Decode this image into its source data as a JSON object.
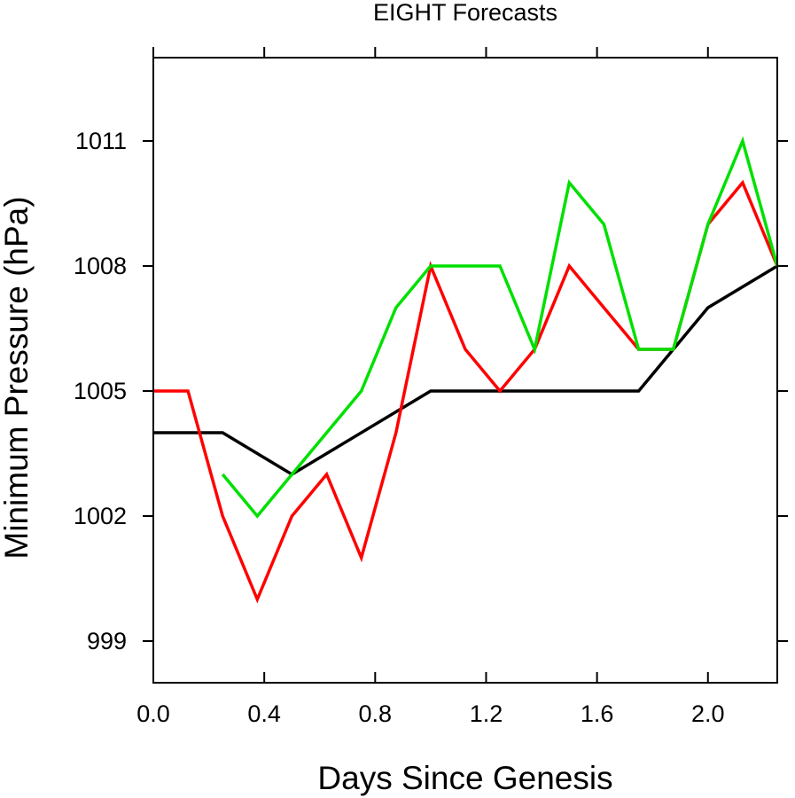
{
  "chart_data": {
    "type": "line",
    "title": "EIGHT Forecasts",
    "xlabel": "Days Since Genesis",
    "ylabel": "Minimum Pressure (hPa)",
    "xlim": [
      0,
      2.25
    ],
    "ylim": [
      998,
      1013
    ],
    "xticks": [
      0.0,
      0.4,
      0.8,
      1.2,
      1.6,
      2.0
    ],
    "xtick_labels": [
      "0.0",
      "0.4",
      "0.8",
      "1.2",
      "1.6",
      "2.0"
    ],
    "yticks": [
      999,
      1002,
      1005,
      1008,
      1011
    ],
    "ytick_labels": [
      "999",
      "1002",
      "1005",
      "1008",
      "1011"
    ],
    "grid": false,
    "legend": "none",
    "series": [
      {
        "color": "#000000",
        "x": [
          0.0,
          0.25,
          0.5,
          1.0,
          1.75,
          2.0,
          2.25
        ],
        "y": [
          1004,
          1004,
          1003,
          1005,
          1005,
          1007,
          1008
        ]
      },
      {
        "color": "#ff0000",
        "x": [
          0.0,
          0.125,
          0.25,
          0.375,
          0.5,
          0.625,
          0.75,
          0.875,
          1.0,
          1.125,
          1.25,
          1.375,
          1.5,
          1.625,
          1.75,
          1.875,
          2.0,
          2.125,
          2.25
        ],
        "y": [
          1005,
          1005,
          1002,
          1000,
          1002,
          1003,
          1001,
          1004,
          1008,
          1006,
          1005,
          1006,
          1008,
          1007,
          1006,
          1006,
          1009,
          1010,
          1008
        ]
      },
      {
        "color": "#00e000",
        "x": [
          0.25,
          0.375,
          0.5,
          0.625,
          0.75,
          0.875,
          1.0,
          1.125,
          1.25,
          1.375,
          1.5,
          1.625,
          1.75,
          1.875,
          2.0,
          2.125,
          2.25
        ],
        "y": [
          1003,
          1002,
          1003,
          1004,
          1005,
          1007,
          1008,
          1008,
          1008,
          1006,
          1010,
          1009,
          1006,
          1006,
          1009,
          1011,
          1008
        ]
      }
    ]
  }
}
